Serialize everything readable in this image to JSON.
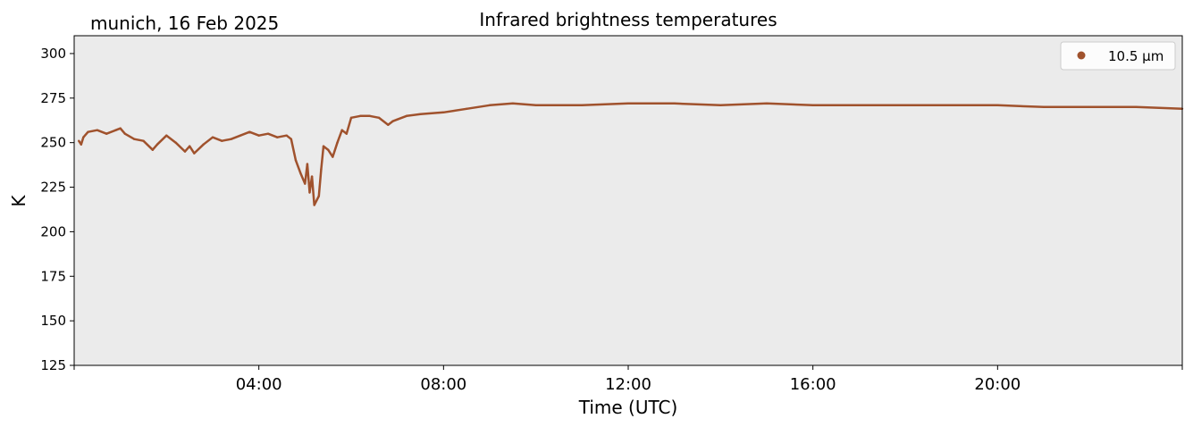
{
  "chart_data": {
    "type": "line",
    "title": "Infrared brightness temperatures",
    "subtitle": "munich, 16 Feb 2025",
    "xlabel": "Time (UTC)",
    "ylabel": "K",
    "x_unit": "hours UTC",
    "xlim": [
      0,
      24
    ],
    "ylim": [
      125,
      310
    ],
    "x_ticks": [
      4,
      8,
      12,
      16,
      20
    ],
    "x_tick_labels": [
      "04:00",
      "08:00",
      "12:00",
      "16:00",
      "20:00"
    ],
    "y_ticks": [
      125,
      150,
      175,
      200,
      225,
      250,
      275,
      300
    ],
    "y_tick_labels": [
      "125",
      "150",
      "175",
      "200",
      "225",
      "250",
      "275",
      "300"
    ],
    "grid": false,
    "legend_position": "top-right",
    "background_color": "#ebebeb",
    "series": [
      {
        "name": "10.5 µm",
        "color": "#a0522d",
        "x": [
          0.1,
          0.15,
          0.2,
          0.3,
          0.5,
          0.7,
          0.9,
          1.0,
          1.1,
          1.3,
          1.5,
          1.7,
          1.8,
          2.0,
          2.2,
          2.4,
          2.5,
          2.6,
          2.8,
          3.0,
          3.2,
          3.4,
          3.6,
          3.8,
          4.0,
          4.2,
          4.4,
          4.6,
          4.7,
          4.8,
          4.9,
          5.0,
          5.05,
          5.1,
          5.15,
          5.2,
          5.3,
          5.35,
          5.4,
          5.5,
          5.6,
          5.7,
          5.8,
          5.9,
          6.0,
          6.2,
          6.4,
          6.6,
          6.8,
          6.9,
          7.0,
          7.2,
          7.5,
          8.0,
          8.5,
          9.0,
          9.5,
          10.0,
          11.0,
          12.0,
          13.0,
          14.0,
          15.0,
          16.0,
          17.0,
          18.0,
          19.0,
          20.0,
          21.0,
          22.0,
          23.0,
          24.0
        ],
        "y": [
          251,
          249,
          253,
          256,
          257,
          255,
          257,
          258,
          255,
          252,
          251,
          246,
          249,
          254,
          250,
          245,
          248,
          244,
          249,
          253,
          251,
          252,
          254,
          256,
          254,
          255,
          253,
          254,
          252,
          240,
          233,
          227,
          238,
          222,
          231,
          215,
          220,
          235,
          248,
          246,
          242,
          250,
          257,
          255,
          264,
          265,
          265,
          264,
          260,
          262,
          263,
          265,
          266,
          267,
          269,
          271,
          272,
          271,
          271,
          272,
          272,
          271,
          272,
          271,
          271,
          271,
          271,
          271,
          270,
          270,
          270,
          269
        ]
      }
    ]
  }
}
